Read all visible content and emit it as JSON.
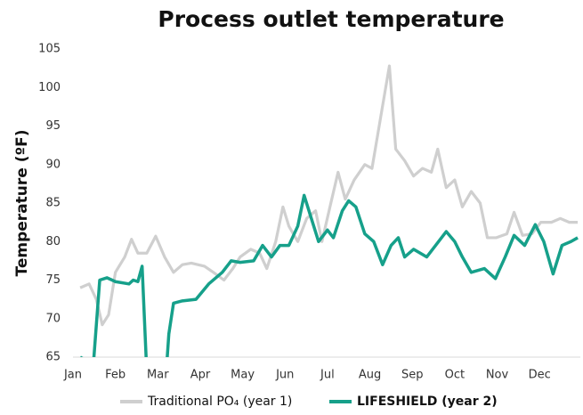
{
  "chart_data": {
    "type": "line",
    "title": "Process outlet temperature",
    "y_label": "Temperature (ºF)",
    "xlim": [
      0,
      11.92
    ],
    "xticks": [
      {
        "value": 0,
        "label": "Jan"
      },
      {
        "value": 1,
        "label": "Feb"
      },
      {
        "value": 2,
        "label": "Mar"
      },
      {
        "value": 3,
        "label": "Apr"
      },
      {
        "value": 4,
        "label": "May"
      },
      {
        "value": 5,
        "label": "Jun"
      },
      {
        "value": 6,
        "label": "Jul"
      },
      {
        "value": 7,
        "label": "Aug"
      },
      {
        "value": 8,
        "label": "Sep"
      },
      {
        "value": 9,
        "label": "Oct"
      },
      {
        "value": 10,
        "label": "Nov"
      },
      {
        "value": 11,
        "label": "Dec"
      }
    ],
    "ylim": [
      65,
      105
    ],
    "yticks": [
      65,
      70,
      75,
      80,
      85,
      90,
      95,
      100,
      105
    ],
    "series": [
      {
        "name": "Traditional PO₄ (year 1)",
        "color": "#cfcfcf",
        "x": [
          0.17,
          0.38,
          0.55,
          0.69,
          0.84,
          1.0,
          1.22,
          1.38,
          1.53,
          1.74,
          1.95,
          2.16,
          2.37,
          2.58,
          2.79,
          3.1,
          3.31,
          3.56,
          3.77,
          3.94,
          4.19,
          4.4,
          4.57,
          4.78,
          4.95,
          5.09,
          5.3,
          5.51,
          5.72,
          5.87,
          6.08,
          6.25,
          6.42,
          6.63,
          6.88,
          7.05,
          7.25,
          7.46,
          7.61,
          7.82,
          8.03,
          8.24,
          8.45,
          8.6,
          8.8,
          9.0,
          9.18,
          9.39,
          9.6,
          9.77,
          9.98,
          10.23,
          10.4,
          10.6,
          10.82,
          11.03,
          11.28,
          11.49,
          11.7,
          11.9
        ],
        "values": [
          74,
          74.5,
          72.5,
          69.2,
          70.5,
          76,
          78,
          80.3,
          78.5,
          78.5,
          80.7,
          78,
          76,
          77,
          77.2,
          76.8,
          76,
          75,
          76.5,
          78,
          79,
          78.5,
          76.5,
          80,
          84.5,
          82,
          80,
          83,
          84,
          80,
          85,
          89,
          85.5,
          88,
          90,
          89.5,
          96,
          102.8,
          92,
          90.5,
          88.5,
          89.5,
          89,
          92,
          87,
          88,
          84.5,
          86.5,
          85,
          80.5,
          80.5,
          81,
          83.8,
          80.8,
          81,
          82.5,
          82.5,
          83,
          82.5,
          82.5
        ]
      },
      {
        "name": "LIFESHIELD (year 2)",
        "color": "#16a08a",
        "x": [
          0.17,
          0.48,
          0.63,
          0.8,
          1.0,
          1.32,
          1.42,
          1.53,
          1.63,
          1.74,
          2.16,
          2.26,
          2.37,
          2.58,
          2.9,
          3.2,
          3.52,
          3.73,
          3.94,
          4.26,
          4.47,
          4.68,
          4.88,
          5.09,
          5.3,
          5.45,
          5.62,
          5.79,
          6.0,
          6.14,
          6.35,
          6.5,
          6.67,
          6.88,
          7.09,
          7.3,
          7.5,
          7.67,
          7.82,
          8.03,
          8.34,
          8.55,
          8.8,
          9.0,
          9.18,
          9.39,
          9.7,
          9.96,
          10.19,
          10.4,
          10.65,
          10.9,
          11.1,
          11.32,
          11.53,
          11.74,
          11.9
        ],
        "values": [
          65,
          64,
          75,
          75.3,
          74.8,
          74.5,
          75,
          74.8,
          76.8,
          63,
          60,
          68,
          72,
          72.3,
          72.5,
          74.5,
          76,
          77.5,
          77.3,
          77.5,
          79.5,
          78,
          79.5,
          79.5,
          82,
          86,
          83,
          80,
          81.5,
          80.5,
          84,
          85.3,
          84.5,
          81,
          80,
          77,
          79.5,
          80.5,
          78,
          79,
          78,
          79.5,
          81.3,
          80,
          78,
          76,
          76.5,
          75.2,
          78,
          80.8,
          79.5,
          82.2,
          80,
          75.8,
          79.5,
          80,
          80.5
        ]
      }
    ]
  }
}
